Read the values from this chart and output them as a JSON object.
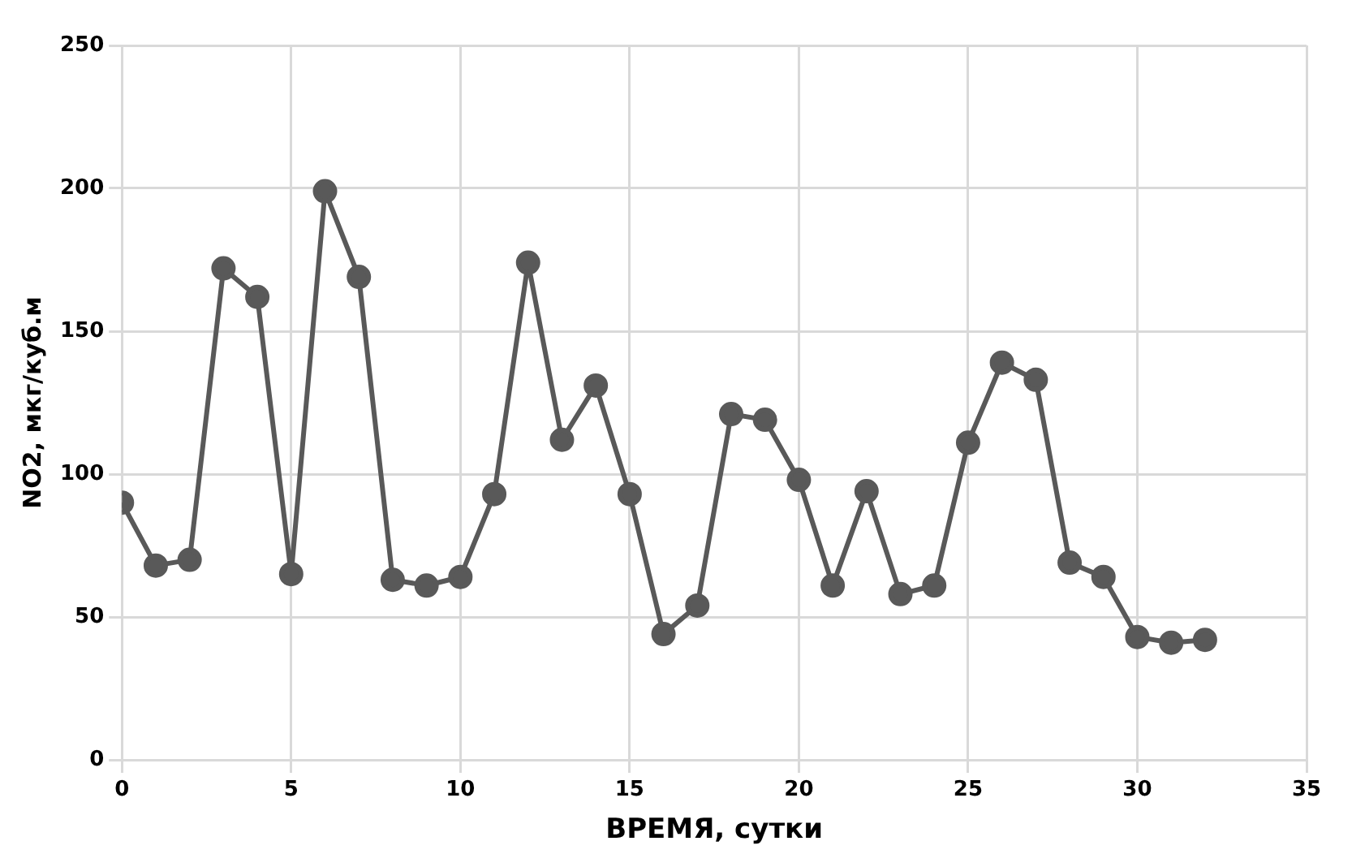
{
  "chart_data": {
    "type": "line",
    "xlabel": "ВРЕМЯ, сутки",
    "ylabel": "NO2, мкг/куб.м",
    "x": [
      0,
      1,
      2,
      3,
      4,
      5,
      6,
      7,
      8,
      9,
      10,
      11,
      12,
      13,
      14,
      15,
      16,
      17,
      18,
      19,
      20,
      21,
      22,
      23,
      24,
      25,
      26,
      27,
      28,
      29,
      30,
      31,
      32
    ],
    "series": [
      {
        "color": "#595959",
        "values": [
          90,
          68,
          70,
          172,
          162,
          65,
          199,
          169,
          63,
          61,
          64,
          93,
          174,
          112,
          131,
          93,
          44,
          54,
          121,
          119,
          98,
          61,
          94,
          58,
          61,
          111,
          139,
          133,
          69,
          64,
          43,
          41,
          42
        ]
      }
    ],
    "xlim": [
      0,
      35
    ],
    "xticks": [
      0,
      5,
      10,
      15,
      20,
      25,
      30,
      35
    ],
    "ylim": [
      0,
      250
    ],
    "yticks": [
      0,
      50,
      100,
      150,
      200,
      250
    ],
    "grid": true,
    "legend": false,
    "marker": "circle",
    "line_style": "solid"
  }
}
